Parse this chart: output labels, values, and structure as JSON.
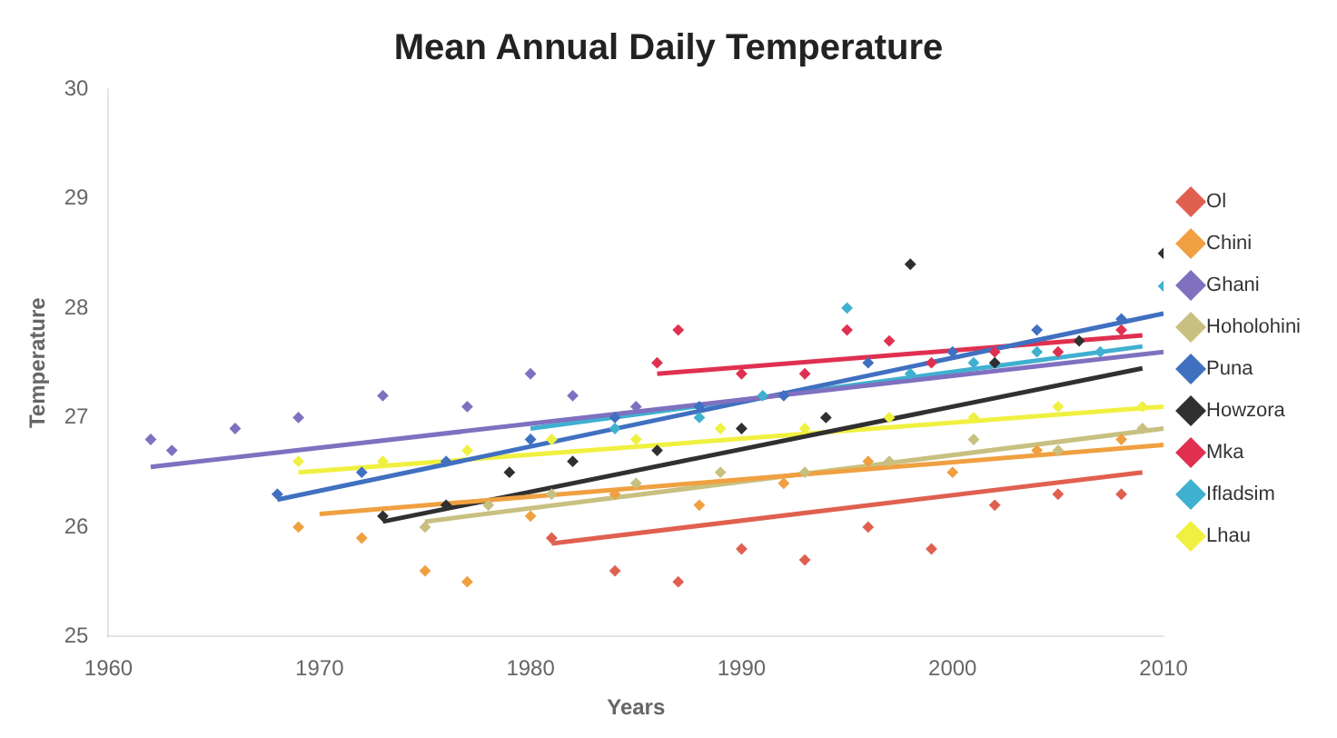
{
  "chart_data": {
    "type": "scatter",
    "title": "Mean Annual Daily Temperature",
    "xlabel": "Years",
    "ylabel": "Temperature",
    "xlim": [
      1960,
      2010
    ],
    "xticks": [
      1960,
      1970,
      1980,
      1990,
      2000,
      2010
    ],
    "ylim": [
      25,
      30
    ],
    "yticks": [
      25,
      26,
      27,
      28,
      29,
      30
    ],
    "grid": false,
    "legend": "right",
    "marker": "diamond",
    "series": [
      {
        "name": "Ol",
        "color": "#e06050",
        "x": [
          1981,
          1984,
          1987,
          1990,
          1993,
          1996,
          1999,
          2002,
          2005,
          2008
        ],
        "values": [
          25.9,
          25.6,
          25.5,
          25.8,
          25.7,
          26.0,
          25.8,
          26.2,
          26.3,
          26.3
        ]
      },
      {
        "name": "Chini",
        "color": "#f0a040",
        "x": [
          1969,
          1972,
          1975,
          1977,
          1980,
          1984,
          1988,
          1992,
          1996,
          2000,
          2004,
          2008
        ],
        "values": [
          26.0,
          25.9,
          25.6,
          25.5,
          26.1,
          26.3,
          26.2,
          26.4,
          26.6,
          26.5,
          26.7,
          26.8
        ]
      },
      {
        "name": "Ghani",
        "color": "#8070c0",
        "x": [
          1962,
          1963,
          1966,
          1969,
          1973,
          1977,
          1980,
          1982,
          1985
        ],
        "values": [
          26.8,
          26.7,
          26.9,
          27.0,
          27.2,
          27.1,
          27.4,
          27.2,
          27.1
        ]
      },
      {
        "name": "Hoholohini",
        "color": "#c8c080",
        "x": [
          1975,
          1978,
          1981,
          1985,
          1989,
          1993,
          1997,
          2001,
          2005,
          2009
        ],
        "values": [
          26.0,
          26.2,
          26.3,
          26.4,
          26.5,
          26.5,
          26.6,
          26.8,
          26.7,
          26.9
        ]
      },
      {
        "name": "Puna",
        "color": "#4070c0",
        "x": [
          1968,
          1972,
          1976,
          1980,
          1984,
          1988,
          1992,
          1996,
          2000,
          2004,
          2008
        ],
        "values": [
          26.3,
          26.5,
          26.6,
          26.8,
          27.0,
          27.1,
          27.2,
          27.5,
          27.6,
          27.8,
          27.9
        ]
      },
      {
        "name": "Howzora",
        "color": "#303030",
        "x": [
          1973,
          1976,
          1979,
          1982,
          1986,
          1990,
          1994,
          1998,
          2002,
          2006,
          2010
        ],
        "values": [
          26.1,
          26.2,
          26.5,
          26.6,
          26.7,
          26.9,
          27.0,
          28.4,
          27.5,
          27.7,
          28.5
        ]
      },
      {
        "name": "Mka",
        "color": "#e03050",
        "x": [
          1986,
          1987,
          1990,
          1993,
          1995,
          1997,
          1999,
          2002,
          2005,
          2008
        ],
        "values": [
          27.5,
          27.8,
          27.4,
          27.4,
          27.8,
          27.7,
          27.5,
          27.6,
          27.6,
          27.8
        ]
      },
      {
        "name": "Ifladsim",
        "color": "#40b0d0",
        "x": [
          1984,
          1988,
          1991,
          1995,
          1998,
          2001,
          2004,
          2007,
          2010
        ],
        "values": [
          26.9,
          27.0,
          27.2,
          28.0,
          27.4,
          27.5,
          27.6,
          27.6,
          28.2
        ]
      },
      {
        "name": "Lhau",
        "color": "#f0f040",
        "x": [
          1969,
          1973,
          1977,
          1981,
          1985,
          1989,
          1993,
          1997,
          2001,
          2005,
          2009
        ],
        "values": [
          26.6,
          26.6,
          26.7,
          26.8,
          26.8,
          26.9,
          26.9,
          27.0,
          27.0,
          27.1,
          27.1
        ]
      },
      {
        "type": "line",
        "marker": "none",
        "color": "#e06050",
        "x": [
          1981,
          2009
        ],
        "values": [
          25.85,
          26.5
        ]
      },
      {
        "type": "line",
        "marker": "none",
        "color": "#f0a040",
        "x": [
          1970,
          2010
        ],
        "values": [
          26.12,
          26.75
        ]
      },
      {
        "type": "line",
        "marker": "none",
        "color": "#8070c0",
        "x": [
          1962,
          2010
        ],
        "values": [
          26.55,
          27.6
        ]
      },
      {
        "type": "line",
        "marker": "none",
        "color": "#c8c080",
        "x": [
          1975,
          2010
        ],
        "values": [
          26.05,
          26.9
        ]
      },
      {
        "type": "line",
        "marker": "none",
        "color": "#4070c0",
        "x": [
          1968,
          2010
        ],
        "values": [
          26.25,
          27.95
        ]
      },
      {
        "type": "line",
        "marker": "none",
        "color": "#303030",
        "x": [
          1973,
          2009
        ],
        "values": [
          26.05,
          27.45
        ]
      },
      {
        "type": "line",
        "marker": "none",
        "color": "#e03050",
        "x": [
          1986,
          2009
        ],
        "values": [
          27.4,
          27.75
        ]
      },
      {
        "type": "line",
        "marker": "none",
        "color": "#40b0d0",
        "x": [
          1980,
          2009
        ],
        "values": [
          26.9,
          27.65
        ]
      },
      {
        "type": "line",
        "marker": "none",
        "color": "#f0f040",
        "x": [
          1969,
          2010
        ],
        "values": [
          26.5,
          27.1
        ]
      }
    ]
  }
}
